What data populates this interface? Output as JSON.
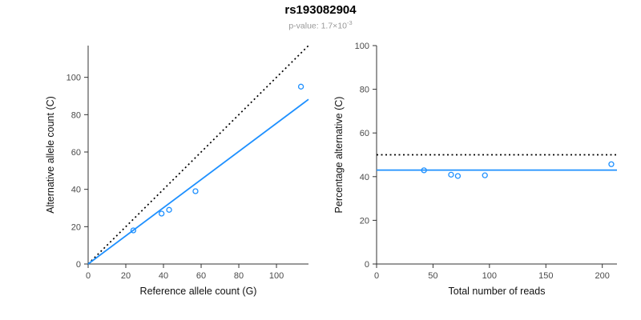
{
  "header": {
    "title": "rs193082904",
    "subtitle_prefix": "p-value: 1.7×10",
    "subtitle_exp": "-3"
  },
  "colors": {
    "accent_blue": "#1E90FF",
    "dotted_line": "#000000",
    "axis": "#333333",
    "tick_text": "#4a4a4a",
    "label_text": "#111111"
  },
  "chart_data": [
    {
      "type": "scatter",
      "title": "",
      "xlabel": "Reference allele count (G)",
      "ylabel": "Alternative allele count (C)",
      "xlim": [
        0,
        117
      ],
      "ylim": [
        0,
        117
      ],
      "xticks": [
        0,
        20,
        40,
        60,
        80,
        100
      ],
      "yticks": [
        0,
        20,
        40,
        60,
        80,
        100
      ],
      "grid": false,
      "legend": "none",
      "points": [
        [
          24,
          18
        ],
        [
          39,
          27
        ],
        [
          43,
          29
        ],
        [
          57,
          39
        ],
        [
          113,
          95
        ]
      ],
      "point_color": "#1E90FF",
      "lines": [
        {
          "name": "identity-line",
          "style": "dotted",
          "color": "#000000",
          "from": [
            0,
            0
          ],
          "to": [
            117,
            117
          ]
        },
        {
          "name": "fit-line",
          "style": "solid",
          "color": "#1E90FF",
          "from": [
            0,
            0
          ],
          "to": [
            117,
            88.2
          ]
        }
      ]
    },
    {
      "type": "scatter",
      "title": "",
      "xlabel": "Total number of reads",
      "ylabel": "Percentage alternative (C)",
      "xlim": [
        0,
        213
      ],
      "ylim": [
        0,
        100
      ],
      "xticks": [
        0,
        50,
        100,
        150,
        200
      ],
      "yticks": [
        0,
        20,
        40,
        60,
        80,
        100
      ],
      "grid": false,
      "legend": "none",
      "points": [
        [
          42,
          42.9
        ],
        [
          66,
          40.9
        ],
        [
          72,
          40.3
        ],
        [
          96,
          40.6
        ],
        [
          208,
          45.7
        ]
      ],
      "point_color": "#1E90FF",
      "lines": [
        {
          "name": "expected-50-line",
          "style": "dotted",
          "color": "#000000",
          "from": [
            0,
            50
          ],
          "to": [
            213,
            50
          ]
        },
        {
          "name": "mean-percentage-line",
          "style": "solid",
          "color": "#1E90FF",
          "from": [
            0,
            43
          ],
          "to": [
            213,
            43
          ]
        }
      ]
    }
  ]
}
